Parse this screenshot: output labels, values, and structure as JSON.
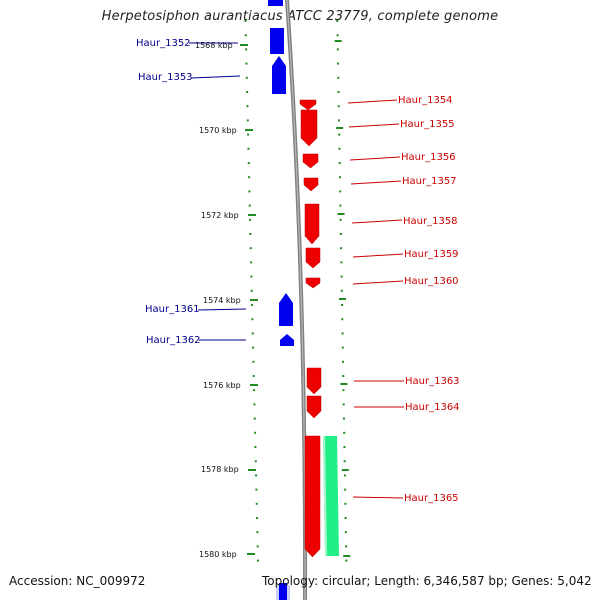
{
  "title": "Herpetosiphon aurantiacus ATCC 23779, complete genome",
  "footer": {
    "accession": "Accession: NC_009972",
    "topology": "Topology: circular; Length: 6,346,587 bp; Genes: 5,042"
  },
  "colors": {
    "forward_gene": "#0000ee",
    "reverse_gene": "#ee0000",
    "feature": "#22ee88",
    "tick": "#228b22",
    "backbone": "#808080"
  },
  "position_ticks": [
    {
      "label": "1568 kbp"
    },
    {
      "label": "1570 kbp"
    },
    {
      "label": "1572 kbp"
    },
    {
      "label": "1574 kbp"
    },
    {
      "label": "1576 kbp"
    },
    {
      "label": "1578 kbp"
    },
    {
      "label": "1580 kbp"
    }
  ],
  "genes": [
    {
      "label": "Haur_1352",
      "strand": "forward"
    },
    {
      "label": "Haur_1353",
      "strand": "forward"
    },
    {
      "label": "Haur_1354",
      "strand": "reverse"
    },
    {
      "label": "Haur_1355",
      "strand": "reverse"
    },
    {
      "label": "Haur_1356",
      "strand": "reverse"
    },
    {
      "label": "Haur_1357",
      "strand": "reverse"
    },
    {
      "label": "Haur_1358",
      "strand": "reverse"
    },
    {
      "label": "Haur_1359",
      "strand": "reverse"
    },
    {
      "label": "Haur_1360",
      "strand": "reverse"
    },
    {
      "label": "Haur_1361",
      "strand": "forward"
    },
    {
      "label": "Haur_1362",
      "strand": "forward"
    },
    {
      "label": "Haur_1363",
      "strand": "reverse"
    },
    {
      "label": "Haur_1364",
      "strand": "reverse"
    },
    {
      "label": "Haur_1365",
      "strand": "reverse"
    }
  ]
}
